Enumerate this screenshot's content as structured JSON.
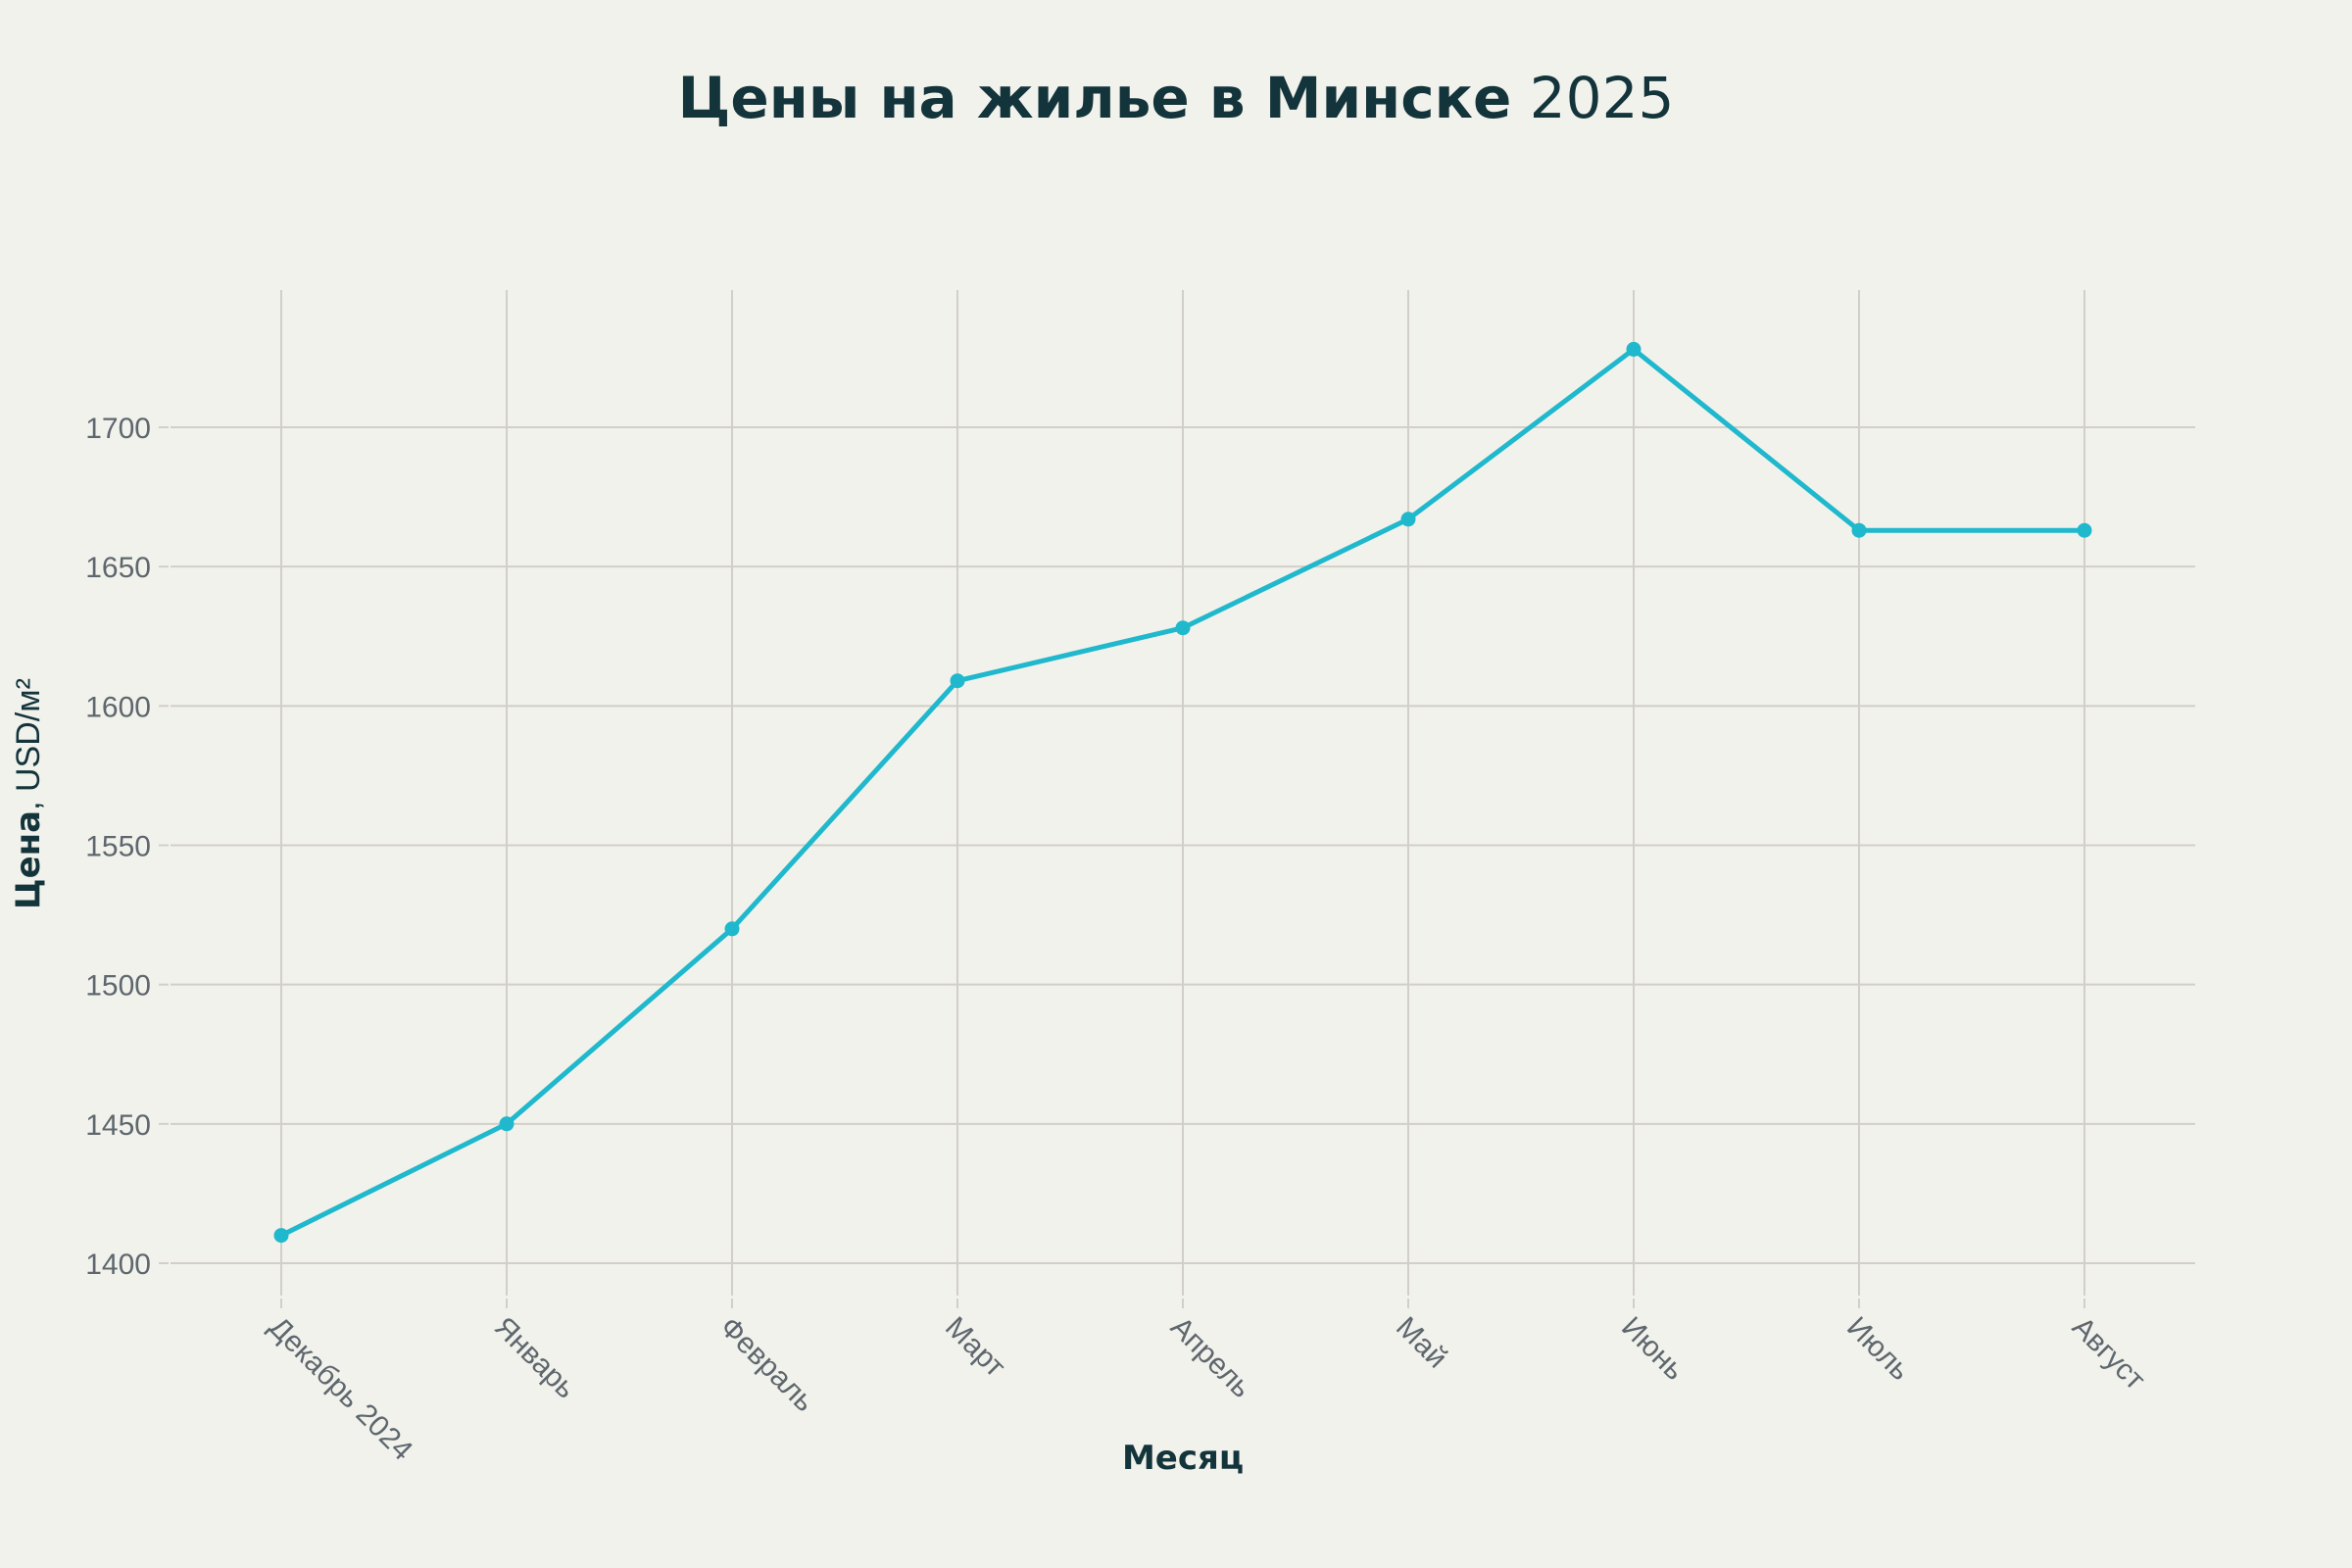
{
  "chart_data": {
    "type": "line",
    "title": "Цены на жилье в Минске 2025",
    "title_parts": {
      "bold": "Цены на жилье в Минске",
      "normal": "2025"
    },
    "xlabel": "Месяц",
    "ylabel": "Цена, USD/м²",
    "ylabel_parts": {
      "bold": "Цена",
      "normal": ", USD/м²"
    },
    "categories": [
      "Декабрь 2024",
      "Январь",
      "Февраль",
      "Март",
      "Апрель",
      "Май",
      "Июнь",
      "Июль",
      "Август"
    ],
    "series": [
      {
        "name": "Цена",
        "values": [
          1410,
          1450,
          1520,
          1609,
          1628,
          1667,
          1728,
          1663,
          1663
        ],
        "color": "#1FB8CD"
      }
    ],
    "yticks": [
      1400,
      1450,
      1500,
      1550,
      1600,
      1650,
      1700
    ],
    "ylim": [
      1386,
      1749
    ],
    "grid": true,
    "legend": false,
    "x_tick_rotation": 45
  },
  "colors": {
    "background": "#F2F2EC",
    "line": "#1FB8CD",
    "title": "#13343B",
    "tick_text": "#5E676E",
    "grid": "#D2CEC8"
  }
}
